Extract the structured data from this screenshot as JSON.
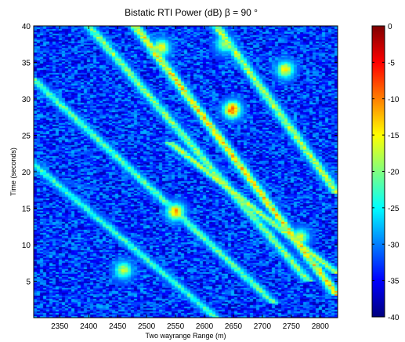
{
  "chart_data": {
    "type": "heatmap",
    "title": "Bistatic RTI Power (dB)  β = 90 °",
    "xlabel": "Two wayrange Range (m)",
    "ylabel": "Time (seconds)",
    "xlim": [
      2305,
      2830
    ],
    "ylim": [
      0,
      40
    ],
    "x_ticks": [
      2350,
      2400,
      2450,
      2500,
      2550,
      2600,
      2650,
      2700,
      2750,
      2800
    ],
    "y_ticks": [
      5,
      10,
      15,
      20,
      25,
      30,
      35,
      40
    ],
    "colorbar": {
      "label": "",
      "range": [
        -40,
        0
      ],
      "ticks": [
        0,
        -5,
        -10,
        -15,
        -20,
        -25,
        -30,
        -35,
        -40
      ],
      "colormap": "jet"
    },
    "background_level_db": -33,
    "tracks": [
      {
        "x_start": 2480,
        "t_start": 40,
        "x_end": 2830,
        "t_end": 3,
        "peak_db": -10
      },
      {
        "x_start": 2400,
        "t_start": 40,
        "x_end": 2780,
        "t_end": 5,
        "peak_db": -16
      },
      {
        "x_start": 2300,
        "t_start": 33,
        "x_end": 2720,
        "t_end": 2,
        "peak_db": -18
      },
      {
        "x_start": 2290,
        "t_start": 22,
        "x_end": 2620,
        "t_end": 0,
        "peak_db": -20
      },
      {
        "x_start": 2620,
        "t_start": 40,
        "x_end": 2830,
        "t_end": 17,
        "peak_db": -14
      },
      {
        "x_start": 2540,
        "t_start": 24,
        "x_end": 2830,
        "t_end": 6,
        "peak_db": -14
      }
    ],
    "hotspots": [
      {
        "x": 2648,
        "t": 28.5,
        "db": -5
      },
      {
        "x": 2550,
        "t": 14.5,
        "db": -8
      },
      {
        "x": 2740,
        "t": 34,
        "db": -12
      },
      {
        "x": 2525,
        "t": 37,
        "db": -12
      },
      {
        "x": 2765,
        "t": 11,
        "db": -14
      },
      {
        "x": 2460,
        "t": 6.5,
        "db": -15
      },
      {
        "x": 2635,
        "t": 37.5,
        "db": -16
      }
    ]
  }
}
